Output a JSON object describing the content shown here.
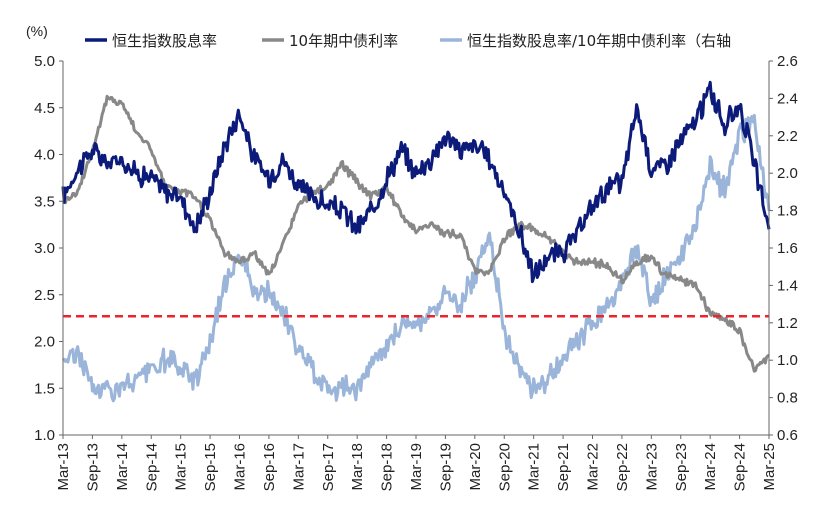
{
  "chart_data": {
    "type": "line",
    "y_unit_label": "(%)",
    "xlabel": "",
    "ylabel": "",
    "left_axis": {
      "ylim": [
        1.0,
        5.0
      ],
      "ticks": [
        "1.0",
        "1.5",
        "2.0",
        "2.5",
        "3.0",
        "3.5",
        "4.0",
        "4.5",
        "5.0"
      ]
    },
    "right_axis": {
      "ylim": [
        0.6,
        2.6
      ],
      "ticks": [
        "0.6",
        "0.8",
        "1.0",
        "1.2",
        "1.4",
        "1.6",
        "1.8",
        "2.0",
        "2.2",
        "2.4",
        "2.6"
      ]
    },
    "x_ticks": [
      "Mar-13",
      "Sep-13",
      "Mar-14",
      "Sep-14",
      "Mar-15",
      "Sep-15",
      "Mar-16",
      "Sep-16",
      "Mar-17",
      "Sep-17",
      "Mar-18",
      "Sep-18",
      "Mar-19",
      "Sep-19",
      "Mar-20",
      "Sep-20",
      "Mar-21",
      "Sep-21",
      "Mar-22",
      "Sep-22",
      "Mar-23",
      "Sep-23",
      "Mar-24",
      "Sep-24",
      "Mar-25"
    ],
    "x": [
      "2013-03",
      "2013-06",
      "2013-09",
      "2013-12",
      "2014-03",
      "2014-06",
      "2014-09",
      "2014-12",
      "2015-03",
      "2015-06",
      "2015-09",
      "2015-12",
      "2016-03",
      "2016-06",
      "2016-09",
      "2016-12",
      "2017-03",
      "2017-06",
      "2017-09",
      "2017-12",
      "2018-03",
      "2018-06",
      "2018-09",
      "2018-12",
      "2019-03",
      "2019-06",
      "2019-09",
      "2019-12",
      "2020-03",
      "2020-06",
      "2020-09",
      "2020-12",
      "2021-03",
      "2021-06",
      "2021-09",
      "2021-12",
      "2022-03",
      "2022-06",
      "2022-09",
      "2022-12",
      "2023-03",
      "2023-06",
      "2023-09",
      "2023-12",
      "2024-03",
      "2024-06",
      "2024-09",
      "2024-12",
      "2025-03"
    ],
    "series": [
      {
        "name": "恒生指数股息率",
        "axis": "left",
        "color": "#0c1a7a",
        "values": [
          3.55,
          3.85,
          4.05,
          3.9,
          3.95,
          3.8,
          3.75,
          3.6,
          3.55,
          3.2,
          3.6,
          4.1,
          4.45,
          3.95,
          3.75,
          3.95,
          3.65,
          3.55,
          3.45,
          3.4,
          3.2,
          3.4,
          3.75,
          4.05,
          3.8,
          3.95,
          4.2,
          4.05,
          4.1,
          3.95,
          3.6,
          3.2,
          2.7,
          2.9,
          2.95,
          3.15,
          3.45,
          3.65,
          3.7,
          4.5,
          3.85,
          3.9,
          4.15,
          4.35,
          4.7,
          4.3,
          4.55,
          3.9,
          3.2
        ]
      },
      {
        "name": "10年期中债利率",
        "axis": "left",
        "color": "#888888",
        "values": [
          3.5,
          3.6,
          4.05,
          4.6,
          4.55,
          4.25,
          4.05,
          3.65,
          3.6,
          3.55,
          3.3,
          2.95,
          2.85,
          2.95,
          2.7,
          3.05,
          3.45,
          3.6,
          3.65,
          3.9,
          3.7,
          3.55,
          3.65,
          3.35,
          3.2,
          3.25,
          3.15,
          3.15,
          2.75,
          2.75,
          3.1,
          3.25,
          3.2,
          3.1,
          2.95,
          2.85,
          2.85,
          2.8,
          2.65,
          2.85,
          2.9,
          2.7,
          2.65,
          2.6,
          2.3,
          2.25,
          2.1,
          1.7,
          1.85
        ]
      },
      {
        "name": "恒生指数股息率/10年期中债利率（右轴",
        "axis": "right",
        "color": "#9ab5d9",
        "values": [
          1.0,
          1.05,
          0.85,
          0.85,
          0.85,
          0.9,
          0.95,
          1.0,
          0.95,
          0.9,
          1.1,
          1.4,
          1.6,
          1.35,
          1.35,
          1.25,
          1.05,
          0.95,
          0.85,
          0.85,
          0.85,
          1.0,
          1.05,
          1.2,
          1.2,
          1.25,
          1.35,
          1.3,
          1.45,
          1.7,
          1.15,
          0.95,
          0.85,
          0.9,
          1.0,
          1.1,
          1.2,
          1.3,
          1.4,
          1.6,
          1.3,
          1.45,
          1.55,
          1.7,
          2.05,
          1.9,
          2.2,
          2.3,
          1.8
        ]
      }
    ],
    "reference_lines": [
      {
        "axis": "left",
        "value": 2.27,
        "style": "dashed",
        "color": "#e8262b"
      }
    ],
    "legend_position": "top",
    "grid": false
  }
}
